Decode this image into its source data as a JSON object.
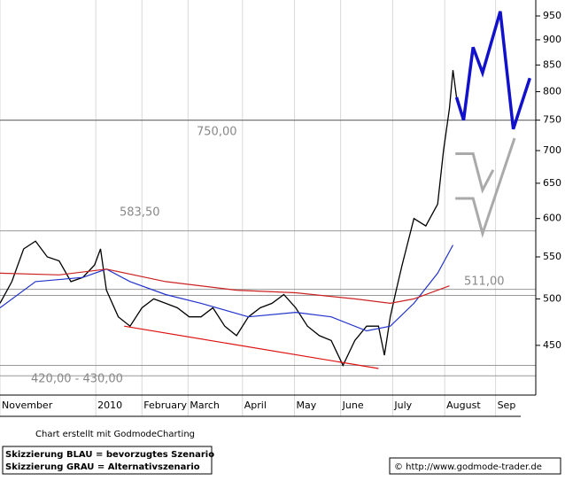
{
  "chart_data": {
    "type": "line",
    "log_y": true,
    "grid": true,
    "xlim": [
      0,
      45.3
    ],
    "ylim": [
      402,
      985
    ],
    "yticks": [
      450,
      500,
      550,
      600,
      650,
      700,
      750,
      800,
      850,
      900,
      950
    ],
    "xticks": [
      {
        "value": 0,
        "label": "November"
      },
      {
        "value": 8.1,
        "label": "2010"
      },
      {
        "value": 12,
        "label": "February"
      },
      {
        "value": 15.9,
        "label": "March"
      },
      {
        "value": 20.5,
        "label": "April"
      },
      {
        "value": 24.9,
        "label": "May"
      },
      {
        "value": 28.8,
        "label": "June"
      },
      {
        "value": 33.2,
        "label": "July"
      },
      {
        "value": 37.6,
        "label": "August"
      },
      {
        "value": 41.9,
        "label": "Sep"
      }
    ],
    "series": [
      {
        "color": "#000000",
        "width": 1.3,
        "x": [
          0,
          1,
          2,
          3,
          4,
          5,
          6,
          7,
          8,
          8.5,
          9,
          10,
          11,
          12,
          13,
          14,
          15,
          16,
          17,
          18,
          19,
          20,
          21,
          22,
          23,
          24,
          25,
          26,
          27,
          28,
          29,
          30,
          31,
          32,
          32.5,
          33,
          33.5,
          34,
          35,
          36,
          37,
          37.5,
          38,
          38.3,
          38.6
        ],
        "values": [
          495,
          520,
          560,
          570,
          550,
          545,
          520,
          525,
          540,
          560,
          510,
          480,
          470,
          490,
          500,
          495,
          490,
          480,
          480,
          490,
          470,
          460,
          480,
          490,
          495,
          505,
          490,
          470,
          460,
          455,
          430,
          455,
          470,
          470,
          440,
          480,
          510,
          540,
          600,
          590,
          620,
          700,
          770,
          840,
          790
        ]
      },
      {
        "color": "#2233cc",
        "width": 1.2,
        "x": [
          0,
          3,
          7,
          9,
          11,
          14,
          17,
          21,
          25,
          28,
          31,
          33,
          35,
          37,
          38.3
        ],
        "values": [
          490,
          520,
          525,
          535,
          520,
          505,
          495,
          480,
          485,
          480,
          465,
          470,
          495,
          530,
          565
        ]
      },
      {
        "color": "#cc2222",
        "width": 1.2,
        "x": [
          0,
          5,
          9,
          14,
          20,
          25,
          30,
          33,
          35,
          38
        ],
        "values": [
          530,
          528,
          535,
          520,
          510,
          507,
          500,
          495,
          500,
          515
        ]
      },
      {
        "color": "#dd1111",
        "width": 1.2,
        "x": [
          10.5,
          32
        ],
        "values": [
          470,
          427
        ]
      },
      {
        "color": "#1111cc",
        "width": 3.5,
        "x": [
          38.6,
          39.2,
          40,
          40.8,
          42.3,
          43.4,
          44.8
        ],
        "values": [
          790,
          750,
          885,
          835,
          960,
          735,
          825
        ]
      },
      {
        "color": "#aaaaaa",
        "width": 3,
        "x": [
          38.5,
          40,
          40.8,
          41.7,
          41.7,
          38.5,
          40,
          40.8,
          43.5
        ],
        "values": [
          695,
          695,
          640,
          670,
          null,
          628,
          628,
          580,
          720
        ]
      }
    ],
    "levels": [
      {
        "text": "750,00",
        "values": [
          750
        ]
      },
      {
        "text": "583,50",
        "values": [
          583.5
        ]
      },
      {
        "text": "511,00",
        "values": [
          511,
          504
        ]
      },
      {
        "text": "420,00 - 430,00",
        "values": [
          430,
          420
        ]
      }
    ]
  },
  "footer": {
    "credit": "Chart erstellt mit GodmodeCharting",
    "legend": [
      "Skizzierung BLAU = bevorzugtes Szenario",
      "Skizzierung GRAU = Alternativszenario"
    ],
    "url": "© http://www.godmode-trader.de"
  }
}
